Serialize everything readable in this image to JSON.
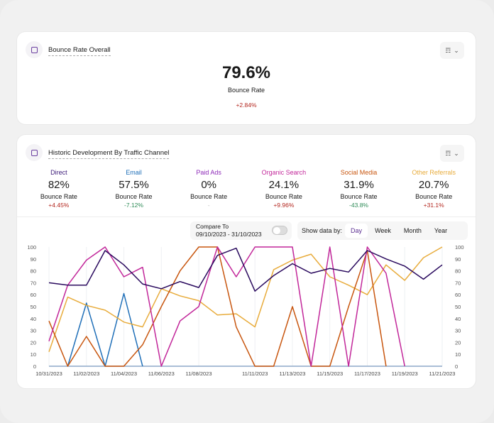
{
  "overall": {
    "title": "Bounce Rate Overall",
    "value": "79.6%",
    "label": "Bounce Rate",
    "change": "+2.84%",
    "change_color": "#b3261e"
  },
  "historic": {
    "title": "Historic Development By Traffic Channel",
    "channels": [
      {
        "name": "Direct",
        "color": "#3b1a78",
        "value": "82%",
        "label": "Bounce Rate",
        "change": "+4.45%",
        "change_color": "#b3261e"
      },
      {
        "name": "Email",
        "color": "#1f6fb8",
        "value": "57.5%",
        "label": "Bounce Rate",
        "change": "-7.12%",
        "change_color": "#2e8b57"
      },
      {
        "name": "Paid Ads",
        "color": "#8e2bb8",
        "value": "0%",
        "label": "Bounce Rate",
        "change": "-",
        "change_color": "#bbbbbb"
      },
      {
        "name": "Organic Search",
        "color": "#c2279a",
        "value": "24.1%",
        "label": "Bounce Rate",
        "change": "+9.96%",
        "change_color": "#b3261e"
      },
      {
        "name": "Social Media",
        "color": "#c8560f",
        "value": "31.9%",
        "label": "Bounce Rate",
        "change": "-43.8%",
        "change_color": "#2e8b57"
      },
      {
        "name": "Other Referrals",
        "color": "#e8ac3c",
        "value": "20.7%",
        "label": "Bounce Rate",
        "change": "+31.1%",
        "change_color": "#b3261e"
      }
    ],
    "compare": {
      "label": "Compare To",
      "range": "09/10/2023 - 31/10/2023",
      "enabled": false
    },
    "show_by": {
      "label": "Show data by:",
      "options": [
        "Day",
        "Week",
        "Month",
        "Year"
      ],
      "selected": "Day"
    }
  },
  "chart_data": {
    "type": "line",
    "x": [
      "10/31/2023",
      "11/01/2023",
      "11/02/2023",
      "11/03/2023",
      "11/04/2023",
      "11/05/2023",
      "11/06/2023",
      "11/07/2023",
      "11/08/2023",
      "11/09/2023",
      "11/10/2023",
      "11/11/2023",
      "11/12/2023",
      "11/13/2023",
      "11/14/2023",
      "11/15/2023",
      "11/16/2023",
      "11/17/2023",
      "11/18/2023",
      "11/19/2023",
      "11/20/2023",
      "11/21/2023"
    ],
    "x_tick_labels": [
      "10/31/2023",
      "11/02/2023",
      "11/04/2023",
      "11/06/2023",
      "11/08/2023",
      "11/11/2023",
      "11/13/2023",
      "11/15/2023",
      "11/17/2023",
      "11/19/2023",
      "11/21/2023"
    ],
    "ylim": [
      0,
      100
    ],
    "y_ticks": [
      0,
      10,
      20,
      30,
      40,
      50,
      60,
      70,
      80,
      90,
      100
    ],
    "dual_axis_labels": true,
    "grid": "vertical",
    "series": [
      {
        "name": "Paid Ads",
        "color": "#8ea9c8",
        "values": [
          0,
          0,
          0,
          0,
          0,
          0,
          0,
          0,
          0,
          0,
          0,
          0,
          0,
          0,
          0,
          0,
          0,
          0,
          0,
          0,
          0,
          0
        ]
      },
      {
        "name": "Email",
        "color": "#1f6fb8",
        "values": [
          null,
          0,
          53,
          0,
          61,
          0,
          null,
          null,
          null,
          null,
          null,
          null,
          null,
          null,
          null,
          null,
          null,
          null,
          null,
          null,
          null,
          null
        ]
      },
      {
        "name": "Other Referrals",
        "color": "#e8ac3c",
        "values": [
          12,
          58,
          51,
          47,
          37,
          33,
          65,
          59,
          55,
          43,
          44,
          33,
          81,
          89,
          94,
          75,
          68,
          60,
          85,
          72,
          91,
          100
        ]
      },
      {
        "name": "Social Media",
        "color": "#c8560f",
        "values": [
          38,
          0,
          25,
          0,
          0,
          18,
          50,
          80,
          100,
          100,
          33,
          0,
          0,
          50,
          0,
          0,
          50,
          97,
          0,
          null,
          null,
          null
        ]
      },
      {
        "name": "Organic Search",
        "color": "#c2279a",
        "values": [
          21,
          68,
          89,
          100,
          75,
          83,
          0,
          38,
          50,
          100,
          75,
          100,
          100,
          100,
          0,
          100,
          0,
          100,
          78,
          0,
          null,
          null
        ]
      },
      {
        "name": "Direct",
        "color": "#2a0a5e",
        "values": [
          70,
          68,
          68,
          97,
          85,
          69,
          65,
          71,
          66,
          93,
          99,
          63,
          76,
          86,
          78,
          82,
          79,
          97,
          90,
          84,
          73,
          85
        ]
      }
    ]
  }
}
